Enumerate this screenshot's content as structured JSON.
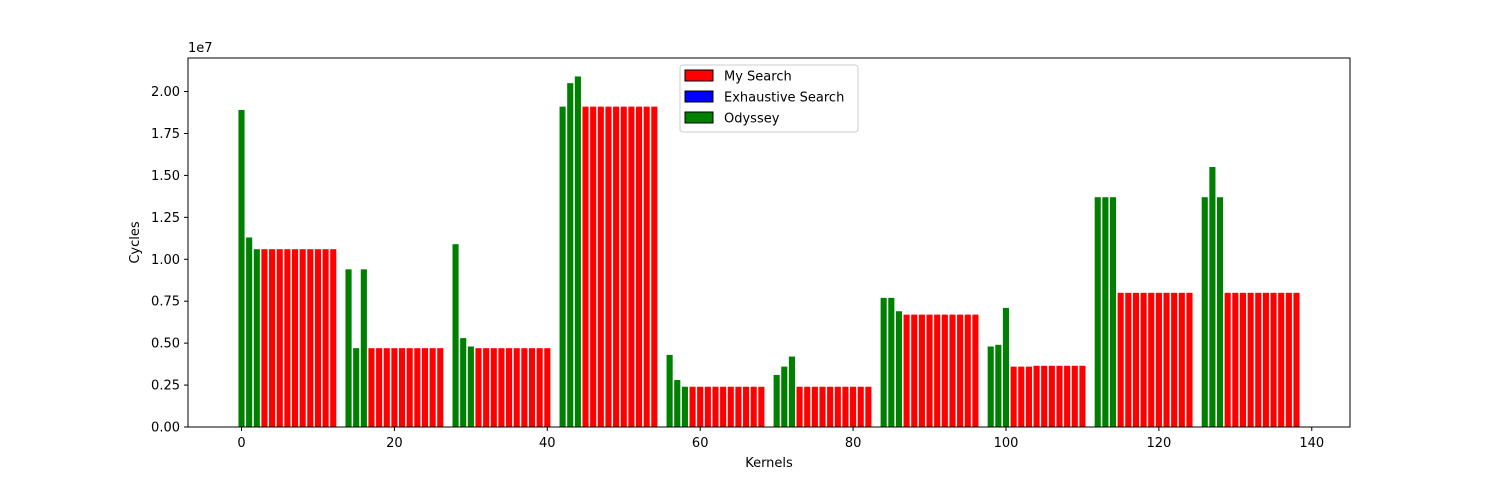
{
  "chart_data": {
    "type": "bar",
    "title": "",
    "xlabel": "Kernels",
    "ylabel": "Cycles",
    "y_scale_label": "1e7",
    "xlim": [
      -7,
      145
    ],
    "ylim": [
      0,
      2.2
    ],
    "x_ticks": [
      0,
      20,
      40,
      60,
      80,
      100,
      120,
      140
    ],
    "y_ticks": [
      0.0,
      0.25,
      0.5,
      0.75,
      1.0,
      1.25,
      1.5,
      1.75,
      2.0
    ],
    "x_tick_labels": [
      "0",
      "20",
      "40",
      "60",
      "80",
      "100",
      "120",
      "140"
    ],
    "y_tick_labels": [
      "0.00",
      "0.25",
      "0.50",
      "0.75",
      "1.00",
      "1.25",
      "1.50",
      "1.75",
      "2.00"
    ],
    "grid": false,
    "legend_position": "upper-center",
    "series": [
      {
        "name": "My Search",
        "color": "#ff0000"
      },
      {
        "name": "Exhaustive Search",
        "color": "#0000ff"
      },
      {
        "name": "Odyssey",
        "color": "#008000"
      }
    ],
    "bars": [
      {
        "x": 0,
        "value": 1.89,
        "series": "Odyssey"
      },
      {
        "x": 1,
        "value": 1.13,
        "series": "Odyssey"
      },
      {
        "x": 2,
        "value": 1.06,
        "series": "Odyssey"
      },
      {
        "x": 3,
        "value": 1.06,
        "series": "My Search"
      },
      {
        "x": 4,
        "value": 1.06,
        "series": "My Search"
      },
      {
        "x": 5,
        "value": 1.06,
        "series": "My Search"
      },
      {
        "x": 6,
        "value": 1.06,
        "series": "My Search"
      },
      {
        "x": 7,
        "value": 1.06,
        "series": "My Search"
      },
      {
        "x": 8,
        "value": 1.06,
        "series": "My Search"
      },
      {
        "x": 9,
        "value": 1.06,
        "series": "My Search"
      },
      {
        "x": 10,
        "value": 1.06,
        "series": "My Search"
      },
      {
        "x": 11,
        "value": 1.06,
        "series": "My Search"
      },
      {
        "x": 12,
        "value": 1.06,
        "series": "My Search"
      },
      {
        "x": 14,
        "value": 0.94,
        "series": "Odyssey"
      },
      {
        "x": 15,
        "value": 0.47,
        "series": "Odyssey"
      },
      {
        "x": 16,
        "value": 0.94,
        "series": "Odyssey"
      },
      {
        "x": 17,
        "value": 0.47,
        "series": "My Search"
      },
      {
        "x": 18,
        "value": 0.47,
        "series": "My Search"
      },
      {
        "x": 19,
        "value": 0.47,
        "series": "My Search"
      },
      {
        "x": 20,
        "value": 0.47,
        "series": "My Search"
      },
      {
        "x": 21,
        "value": 0.47,
        "series": "My Search"
      },
      {
        "x": 22,
        "value": 0.47,
        "series": "My Search"
      },
      {
        "x": 23,
        "value": 0.47,
        "series": "My Search"
      },
      {
        "x": 24,
        "value": 0.47,
        "series": "My Search"
      },
      {
        "x": 25,
        "value": 0.47,
        "series": "My Search"
      },
      {
        "x": 26,
        "value": 0.47,
        "series": "My Search"
      },
      {
        "x": 28,
        "value": 1.09,
        "series": "Odyssey"
      },
      {
        "x": 29,
        "value": 0.53,
        "series": "Odyssey"
      },
      {
        "x": 30,
        "value": 0.48,
        "series": "Odyssey"
      },
      {
        "x": 31,
        "value": 0.47,
        "series": "My Search"
      },
      {
        "x": 32,
        "value": 0.47,
        "series": "My Search"
      },
      {
        "x": 33,
        "value": 0.47,
        "series": "My Search"
      },
      {
        "x": 34,
        "value": 0.47,
        "series": "My Search"
      },
      {
        "x": 35,
        "value": 0.47,
        "series": "My Search"
      },
      {
        "x": 36,
        "value": 0.47,
        "series": "My Search"
      },
      {
        "x": 37,
        "value": 0.47,
        "series": "My Search"
      },
      {
        "x": 38,
        "value": 0.47,
        "series": "My Search"
      },
      {
        "x": 39,
        "value": 0.47,
        "series": "My Search"
      },
      {
        "x": 40,
        "value": 0.47,
        "series": "My Search"
      },
      {
        "x": 42,
        "value": 1.91,
        "series": "Odyssey"
      },
      {
        "x": 43,
        "value": 2.05,
        "series": "Odyssey"
      },
      {
        "x": 44,
        "value": 2.09,
        "series": "Odyssey"
      },
      {
        "x": 45,
        "value": 1.91,
        "series": "My Search"
      },
      {
        "x": 46,
        "value": 1.91,
        "series": "My Search"
      },
      {
        "x": 47,
        "value": 1.91,
        "series": "My Search"
      },
      {
        "x": 48,
        "value": 1.91,
        "series": "My Search"
      },
      {
        "x": 49,
        "value": 1.91,
        "series": "My Search"
      },
      {
        "x": 50,
        "value": 1.91,
        "series": "My Search"
      },
      {
        "x": 51,
        "value": 1.91,
        "series": "My Search"
      },
      {
        "x": 52,
        "value": 1.91,
        "series": "My Search"
      },
      {
        "x": 53,
        "value": 1.91,
        "series": "My Search"
      },
      {
        "x": 54,
        "value": 1.91,
        "series": "My Search"
      },
      {
        "x": 56,
        "value": 0.43,
        "series": "Odyssey"
      },
      {
        "x": 57,
        "value": 0.28,
        "series": "Odyssey"
      },
      {
        "x": 58,
        "value": 0.24,
        "series": "Odyssey"
      },
      {
        "x": 59,
        "value": 0.24,
        "series": "My Search"
      },
      {
        "x": 60,
        "value": 0.24,
        "series": "My Search"
      },
      {
        "x": 61,
        "value": 0.24,
        "series": "My Search"
      },
      {
        "x": 62,
        "value": 0.24,
        "series": "My Search"
      },
      {
        "x": 63,
        "value": 0.24,
        "series": "My Search"
      },
      {
        "x": 64,
        "value": 0.24,
        "series": "My Search"
      },
      {
        "x": 65,
        "value": 0.24,
        "series": "My Search"
      },
      {
        "x": 66,
        "value": 0.24,
        "series": "My Search"
      },
      {
        "x": 67,
        "value": 0.24,
        "series": "My Search"
      },
      {
        "x": 68,
        "value": 0.24,
        "series": "My Search"
      },
      {
        "x": 70,
        "value": 0.31,
        "series": "Odyssey"
      },
      {
        "x": 71,
        "value": 0.36,
        "series": "Odyssey"
      },
      {
        "x": 72,
        "value": 0.42,
        "series": "Odyssey"
      },
      {
        "x": 73,
        "value": 0.24,
        "series": "My Search"
      },
      {
        "x": 74,
        "value": 0.24,
        "series": "My Search"
      },
      {
        "x": 75,
        "value": 0.24,
        "series": "My Search"
      },
      {
        "x": 76,
        "value": 0.24,
        "series": "My Search"
      },
      {
        "x": 77,
        "value": 0.24,
        "series": "My Search"
      },
      {
        "x": 78,
        "value": 0.24,
        "series": "My Search"
      },
      {
        "x": 79,
        "value": 0.24,
        "series": "My Search"
      },
      {
        "x": 80,
        "value": 0.24,
        "series": "My Search"
      },
      {
        "x": 81,
        "value": 0.24,
        "series": "My Search"
      },
      {
        "x": 82,
        "value": 0.24,
        "series": "My Search"
      },
      {
        "x": 84,
        "value": 0.77,
        "series": "Odyssey"
      },
      {
        "x": 85,
        "value": 0.77,
        "series": "Odyssey"
      },
      {
        "x": 86,
        "value": 0.69,
        "series": "Odyssey"
      },
      {
        "x": 87,
        "value": 0.67,
        "series": "My Search"
      },
      {
        "x": 88,
        "value": 0.67,
        "series": "My Search"
      },
      {
        "x": 89,
        "value": 0.67,
        "series": "My Search"
      },
      {
        "x": 90,
        "value": 0.67,
        "series": "My Search"
      },
      {
        "x": 91,
        "value": 0.67,
        "series": "My Search"
      },
      {
        "x": 92,
        "value": 0.67,
        "series": "My Search"
      },
      {
        "x": 93,
        "value": 0.67,
        "series": "My Search"
      },
      {
        "x": 94,
        "value": 0.67,
        "series": "My Search"
      },
      {
        "x": 95,
        "value": 0.67,
        "series": "My Search"
      },
      {
        "x": 96,
        "value": 0.67,
        "series": "My Search"
      },
      {
        "x": 98,
        "value": 0.48,
        "series": "Odyssey"
      },
      {
        "x": 99,
        "value": 0.49,
        "series": "Odyssey"
      },
      {
        "x": 100,
        "value": 0.71,
        "series": "Odyssey"
      },
      {
        "x": 101,
        "value": 0.36,
        "series": "My Search"
      },
      {
        "x": 102,
        "value": 0.36,
        "series": "My Search"
      },
      {
        "x": 103,
        "value": 0.36,
        "series": "My Search"
      },
      {
        "x": 104,
        "value": 0.365,
        "series": "My Search"
      },
      {
        "x": 105,
        "value": 0.365,
        "series": "My Search"
      },
      {
        "x": 106,
        "value": 0.365,
        "series": "My Search"
      },
      {
        "x": 107,
        "value": 0.365,
        "series": "My Search"
      },
      {
        "x": 108,
        "value": 0.365,
        "series": "My Search"
      },
      {
        "x": 109,
        "value": 0.365,
        "series": "My Search"
      },
      {
        "x": 110,
        "value": 0.365,
        "series": "My Search"
      },
      {
        "x": 112,
        "value": 1.37,
        "series": "Odyssey"
      },
      {
        "x": 113,
        "value": 1.37,
        "series": "Odyssey"
      },
      {
        "x": 114,
        "value": 1.37,
        "series": "Odyssey"
      },
      {
        "x": 115,
        "value": 0.8,
        "series": "My Search"
      },
      {
        "x": 116,
        "value": 0.8,
        "series": "My Search"
      },
      {
        "x": 117,
        "value": 0.8,
        "series": "My Search"
      },
      {
        "x": 118,
        "value": 0.8,
        "series": "My Search"
      },
      {
        "x": 119,
        "value": 0.8,
        "series": "My Search"
      },
      {
        "x": 120,
        "value": 0.8,
        "series": "My Search"
      },
      {
        "x": 121,
        "value": 0.8,
        "series": "My Search"
      },
      {
        "x": 122,
        "value": 0.8,
        "series": "My Search"
      },
      {
        "x": 123,
        "value": 0.8,
        "series": "My Search"
      },
      {
        "x": 124,
        "value": 0.8,
        "series": "My Search"
      },
      {
        "x": 126,
        "value": 1.37,
        "series": "Odyssey"
      },
      {
        "x": 127,
        "value": 1.55,
        "series": "Odyssey"
      },
      {
        "x": 128,
        "value": 1.37,
        "series": "Odyssey"
      },
      {
        "x": 129,
        "value": 0.8,
        "series": "My Search"
      },
      {
        "x": 130,
        "value": 0.8,
        "series": "My Search"
      },
      {
        "x": 131,
        "value": 0.8,
        "series": "My Search"
      },
      {
        "x": 132,
        "value": 0.8,
        "series": "My Search"
      },
      {
        "x": 133,
        "value": 0.8,
        "series": "My Search"
      },
      {
        "x": 134,
        "value": 0.8,
        "series": "My Search"
      },
      {
        "x": 135,
        "value": 0.8,
        "series": "My Search"
      },
      {
        "x": 136,
        "value": 0.8,
        "series": "My Search"
      },
      {
        "x": 137,
        "value": 0.8,
        "series": "My Search"
      },
      {
        "x": 138,
        "value": 0.8,
        "series": "My Search"
      }
    ]
  }
}
